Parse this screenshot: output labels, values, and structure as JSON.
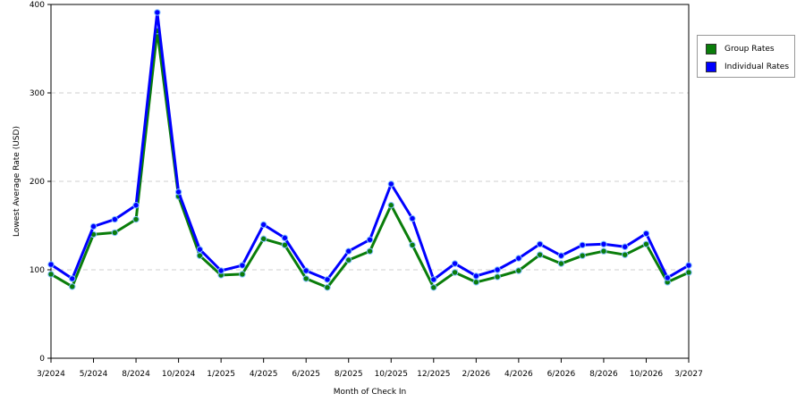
{
  "chart_data": {
    "type": "line",
    "xlabel": "Month of Check In",
    "ylabel": "Lowest Average Rate (USD)",
    "ylim": [
      0,
      400
    ],
    "yticks": [
      0,
      100,
      200,
      300,
      400
    ],
    "grid": "horizontal-dashed",
    "legend_position": "right",
    "x_tick_labels": [
      "3/2024",
      "5/2024",
      "8/2024",
      "10/2024",
      "1/2025",
      "4/2025",
      "6/2025",
      "8/2025",
      "10/2025",
      "12/2025",
      "2/2026",
      "4/2026",
      "6/2026",
      "8/2026",
      "10/2026",
      "3/2027"
    ],
    "series": [
      {
        "name": "Group Rates",
        "color": "#0a7d0a",
        "values": [
          95,
          81,
          140,
          142,
          157,
          370,
          183,
          116,
          94,
          95,
          135,
          128,
          90,
          80,
          111,
          121,
          173,
          128,
          80,
          97,
          86,
          92,
          99,
          117,
          107,
          116,
          121,
          117,
          129,
          86,
          97
        ]
      },
      {
        "name": "Individual Rates",
        "color": "#0000ff",
        "values": [
          106,
          90,
          149,
          157,
          173,
          391,
          188,
          123,
          99,
          105,
          151,
          136,
          99,
          89,
          121,
          134,
          197,
          158,
          89,
          107,
          93,
          100,
          113,
          129,
          116,
          128,
          129,
          126,
          141,
          91,
          105
        ]
      }
    ]
  }
}
